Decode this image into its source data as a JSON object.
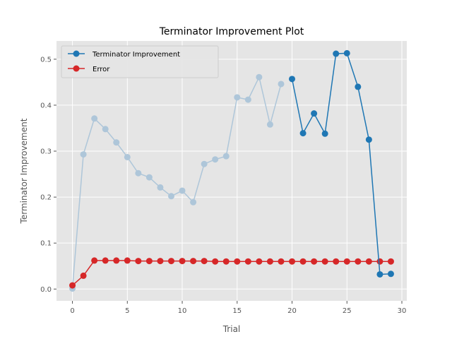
{
  "chart_data": {
    "type": "line",
    "title": "Terminator Improvement Plot",
    "xlabel": "Trial",
    "ylabel": "Terminator Improvement",
    "xlim": [
      -1.45,
      30.45
    ],
    "ylim": [
      -0.0257,
      0.5397
    ],
    "xticks": [
      0,
      5,
      10,
      15,
      20,
      25,
      30
    ],
    "yticks": [
      0.0,
      0.1,
      0.2,
      0.3,
      0.4,
      0.5
    ],
    "ytick_labels": [
      "0.0",
      "0.1",
      "0.2",
      "0.3",
      "0.4",
      "0.5"
    ],
    "grid": true,
    "legend_position": "top-left",
    "series": [
      {
        "name": "Terminator Improvement",
        "color": "#1f77b4",
        "faded_color": "#aec6d9",
        "faded_until_index": 19,
        "x": [
          0,
          1,
          2,
          3,
          4,
          5,
          6,
          7,
          8,
          9,
          10,
          11,
          12,
          13,
          14,
          15,
          16,
          17,
          18,
          19,
          20,
          21,
          22,
          23,
          24,
          25,
          26,
          27,
          28,
          29
        ],
        "y": [
          0.001,
          0.293,
          0.371,
          0.348,
          0.319,
          0.287,
          0.252,
          0.243,
          0.221,
          0.202,
          0.214,
          0.189,
          0.272,
          0.282,
          0.289,
          0.417,
          0.412,
          0.461,
          0.358,
          0.446,
          0.457,
          0.339,
          0.382,
          0.338,
          0.512,
          0.513,
          0.44,
          0.325,
          0.032,
          0.033
        ]
      },
      {
        "name": "Error",
        "color": "#d62728",
        "x": [
          0,
          1,
          2,
          3,
          4,
          5,
          6,
          7,
          8,
          9,
          10,
          11,
          12,
          13,
          14,
          15,
          16,
          17,
          18,
          19,
          20,
          21,
          22,
          23,
          24,
          25,
          26,
          27,
          28,
          29
        ],
        "y": [
          0.008,
          0.029,
          0.062,
          0.062,
          0.062,
          0.062,
          0.061,
          0.061,
          0.061,
          0.061,
          0.061,
          0.061,
          0.061,
          0.06,
          0.06,
          0.06,
          0.06,
          0.06,
          0.06,
          0.06,
          0.06,
          0.06,
          0.06,
          0.06,
          0.06,
          0.06,
          0.06,
          0.06,
          0.06,
          0.06
        ]
      }
    ]
  }
}
